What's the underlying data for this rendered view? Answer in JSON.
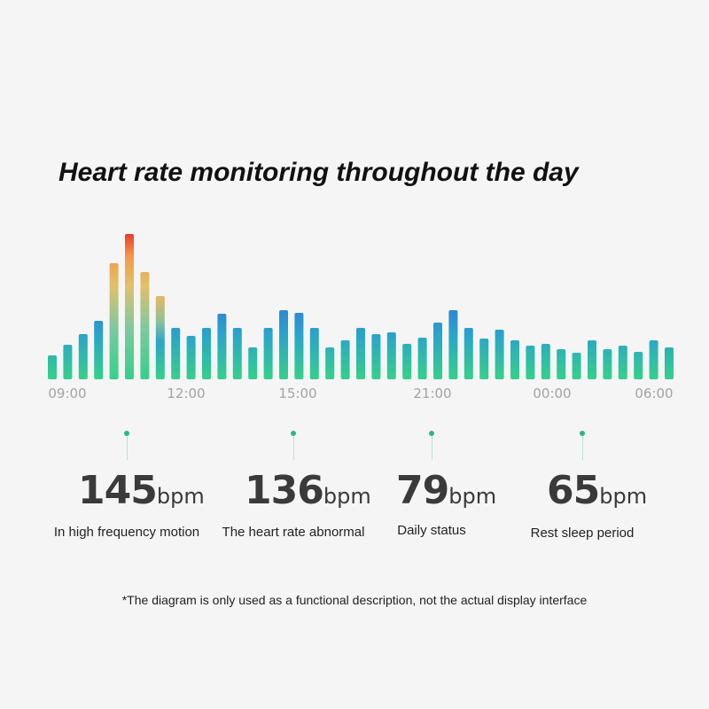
{
  "title": "Heart rate monitoring throughout the day",
  "chart_data": {
    "type": "bar",
    "title": "Heart rate monitoring throughout the day",
    "x_tick_labels": [
      "09:00",
      "12:00",
      "15:00",
      "21:00",
      "00:00",
      "06:00"
    ],
    "values": [
      27,
      39,
      51,
      66,
      131,
      164,
      121,
      94,
      58,
      49,
      58,
      74,
      58,
      36,
      58,
      78,
      75,
      58,
      36,
      44,
      58,
      51,
      53,
      40,
      47,
      64,
      78,
      58,
      46,
      56,
      44,
      38,
      40,
      34,
      30,
      44,
      34,
      38,
      31,
      44,
      36
    ],
    "ylim": [
      0,
      170
    ],
    "colors": {
      "base": "#2ecc8f",
      "mid": "#2e8fd6",
      "warm": "#f0b75a",
      "hot": "#e9412f"
    }
  },
  "stats": [
    {
      "value": "145",
      "unit": "bpm",
      "label": "In high frequency motion"
    },
    {
      "value": "136",
      "unit": "bpm",
      "label": "The heart rate abnormal"
    },
    {
      "value": "79",
      "unit": "bpm",
      "label": "Daily status"
    },
    {
      "value": "65",
      "unit": "bpm",
      "label": "Rest sleep period"
    }
  ],
  "footnote": "*The diagram is only used as a functional description, not the actual display interface"
}
